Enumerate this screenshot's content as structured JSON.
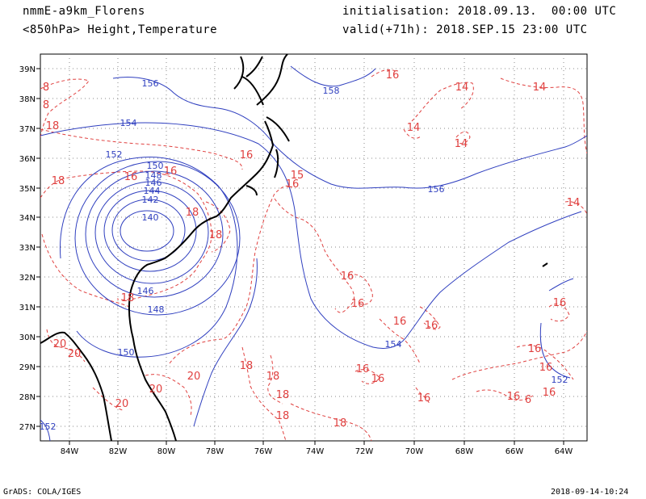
{
  "header": {
    "model": "nmmE-a9km_Florens",
    "field": "<850hPa> Height,Temperature",
    "init": "initialisation: 2018.09.13.  00:00 UTC",
    "valid": "valid(+71h): 2018.SEP.15 23:00 UTC"
  },
  "footer": {
    "left": "GrADS: COLA/IGES",
    "right": "2018-09-14-10:24"
  },
  "colors": {
    "height": "#2f3fbf",
    "temperature": "#e0403f",
    "coast": "#000000"
  },
  "axes": {
    "lat_labels": [
      "39N",
      "38N",
      "37N",
      "36N",
      "35N",
      "34N",
      "33N",
      "32N",
      "31N",
      "30N",
      "29N",
      "28N",
      "27N"
    ],
    "lon_labels": [
      "84W",
      "82W",
      "80W",
      "78W",
      "76W",
      "74W",
      "72W",
      "70W",
      "68W",
      "66W",
      "64W"
    ]
  },
  "height_labels": [
    "156",
    "158",
    "154",
    "152",
    "150",
    "148",
    "146",
    "144",
    "142",
    "140",
    "146",
    "148",
    "150",
    "154",
    "156",
    "152",
    "152"
  ],
  "temp_labels": [
    "8",
    "8",
    "18",
    "18",
    "16",
    "16",
    "16",
    "16",
    "15",
    "16",
    "14",
    "14",
    "14",
    "14",
    "14",
    "18",
    "18",
    "18",
    "20",
    "20",
    "20",
    "20",
    "20",
    "18",
    "18",
    "18",
    "18",
    "18",
    "16",
    "16",
    "16",
    "16",
    "16",
    "16",
    "16",
    "16",
    "16",
    "16",
    "16",
    "6",
    "16"
  ]
}
